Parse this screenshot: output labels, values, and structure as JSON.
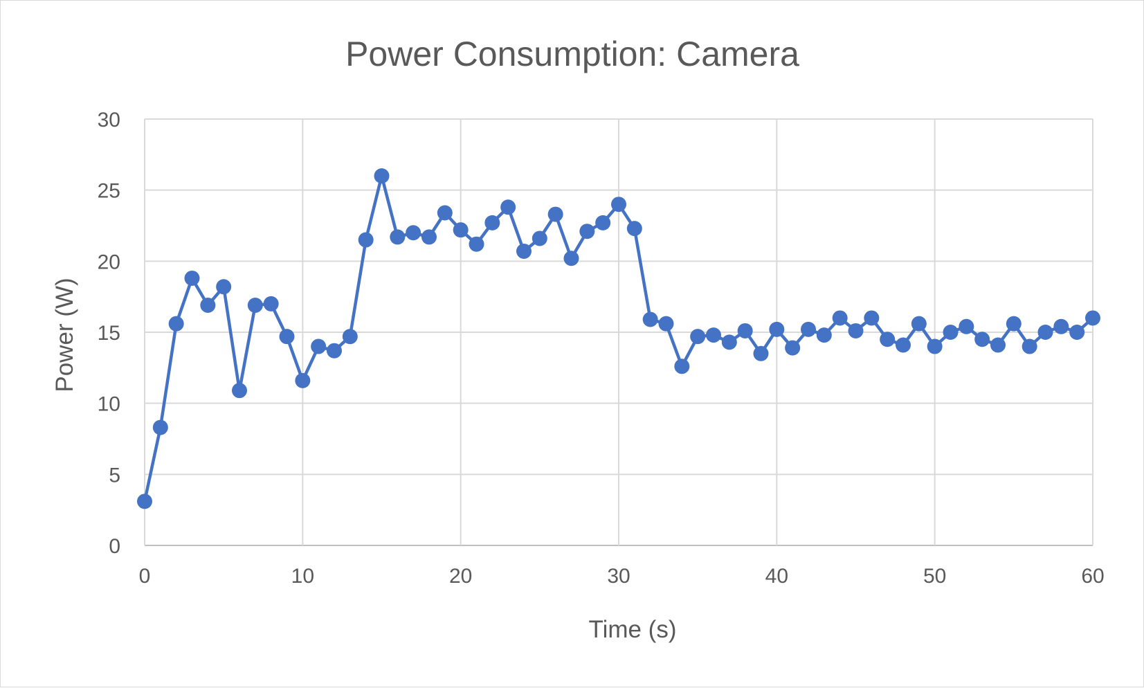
{
  "chart_data": {
    "type": "line",
    "title": "Power Consumption: Camera",
    "xlabel": "Time (s)",
    "ylabel": "Power (W)",
    "xlim": [
      0,
      60
    ],
    "ylim": [
      0,
      30
    ],
    "x_ticks": [
      "0",
      "10",
      "20",
      "30",
      "40",
      "50",
      "60"
    ],
    "y_ticks": [
      "0",
      "5",
      "10",
      "15",
      "20",
      "25",
      "30"
    ],
    "grid": true,
    "legend": "none",
    "series": [
      {
        "color": "#4472C4",
        "marker": "circle",
        "x": [
          0,
          1,
          2,
          3,
          4,
          5,
          6,
          7,
          8,
          9,
          10,
          11,
          12,
          13,
          14,
          15,
          16,
          17,
          18,
          19,
          20,
          21,
          22,
          23,
          24,
          25,
          26,
          27,
          28,
          29,
          30,
          31,
          32,
          33,
          34,
          35,
          36,
          37,
          38,
          39,
          40,
          41,
          42,
          43,
          44,
          45,
          46,
          47,
          48,
          49,
          50,
          51,
          52,
          53,
          54,
          55,
          56,
          57,
          58,
          59,
          60
        ],
        "values": [
          3.1,
          8.3,
          15.6,
          18.8,
          16.9,
          18.2,
          10.9,
          16.9,
          17.0,
          14.7,
          11.6,
          14.0,
          13.7,
          14.7,
          21.5,
          26.0,
          21.7,
          22.0,
          21.7,
          23.4,
          22.2,
          21.2,
          22.7,
          23.8,
          20.7,
          21.6,
          23.3,
          20.2,
          22.1,
          22.7,
          24.0,
          22.3,
          15.9,
          15.6,
          12.6,
          14.7,
          14.8,
          14.3,
          15.1,
          13.5,
          15.2,
          13.9,
          15.2,
          14.8,
          16.0,
          15.1,
          16.0,
          14.5,
          14.1,
          15.6,
          14.0,
          15.0,
          15.4,
          14.5,
          14.1,
          15.6,
          14.0,
          15.0,
          15.4,
          15.0,
          16.0
        ]
      }
    ]
  }
}
